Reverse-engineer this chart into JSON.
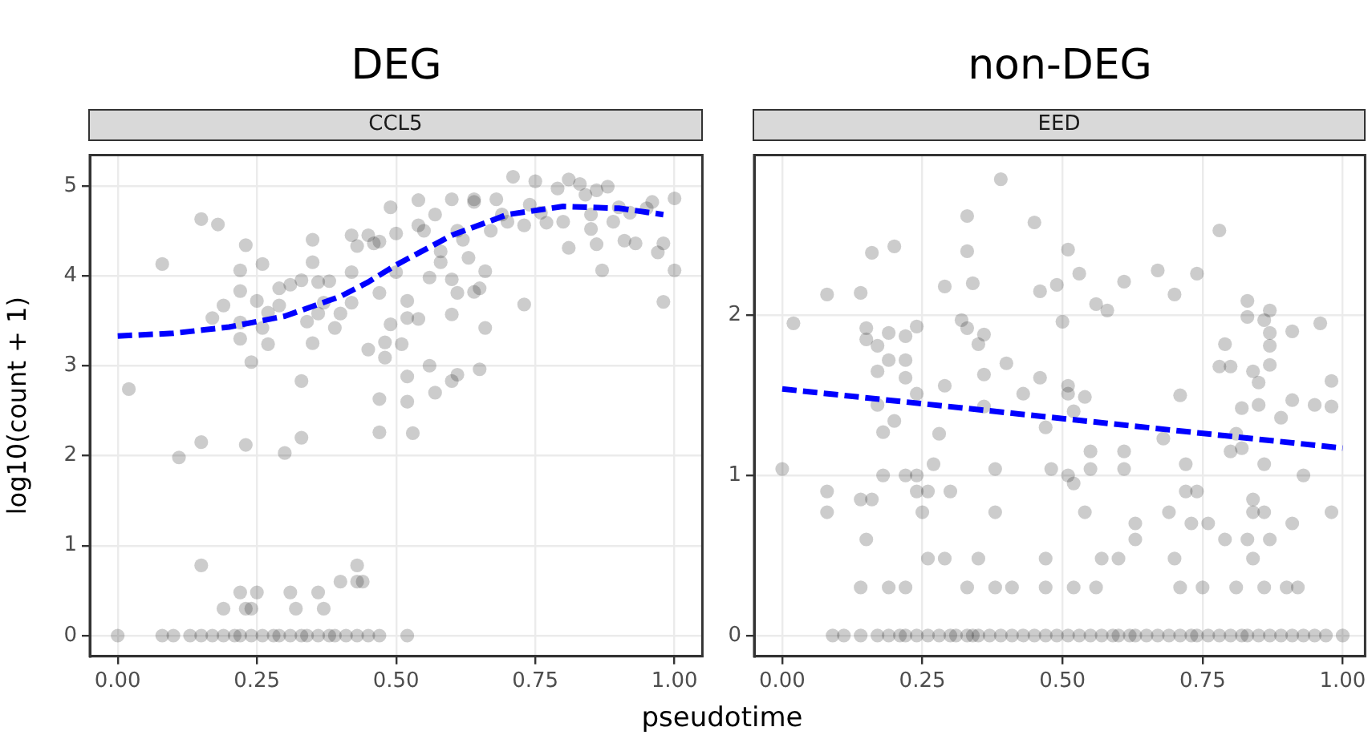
{
  "chart_data": [
    {
      "type": "scatter",
      "title": "DEG",
      "subtitle": "CCL5",
      "xlabel": "pseudotime",
      "ylabel": "log10(count + 1)",
      "xlim": [
        -0.05,
        1.05
      ],
      "ylim": [
        -0.23,
        5.34
      ],
      "xticks": [
        {
          "value": 0,
          "label": "0.00"
        },
        {
          "value": 0.25,
          "label": "0.25"
        },
        {
          "value": 0.5,
          "label": "0.50"
        },
        {
          "value": 0.75,
          "label": "0.75"
        },
        {
          "value": 1,
          "label": "1.00"
        }
      ],
      "yticks": [
        0,
        1,
        2,
        3,
        4,
        5
      ],
      "grid": true,
      "legend": false,
      "series": [
        {
          "type": "scatter",
          "color": "#000000",
          "marker": "circle",
          "x": [
            0,
            0.02,
            0.08,
            0.11,
            0.15,
            0.18,
            0.15,
            0.15,
            0.17,
            0.19,
            0.22,
            0.22,
            0.22,
            0.22,
            0.23,
            0.23,
            0.24,
            0.25,
            0.26,
            0.26,
            0.27,
            0.27,
            0.29,
            0.29,
            0.3,
            0.31,
            0.33,
            0.33,
            0.33,
            0.34,
            0.35,
            0.35,
            0.35,
            0.36,
            0.36,
            0.37,
            0.38,
            0.39,
            0.4,
            0.42,
            0.42,
            0.42,
            0.43,
            0.45,
            0.46,
            0.47,
            0.47,
            0.47,
            0.48,
            0.48,
            0.49,
            0.49,
            0.5,
            0.5,
            0.51,
            0.52,
            0.52,
            0.52,
            0.52,
            0.53,
            0.54,
            0.54,
            0.54,
            0.56,
            0.56,
            0.57,
            0.57,
            0.58,
            0.6,
            0.6,
            0.6,
            0.61,
            0.61,
            0.6,
            0.61,
            0.64,
            0.64,
            0.64,
            0.65,
            0.65,
            0.66,
            0.66,
            0.67,
            0.68,
            0.69,
            0.71,
            0.73,
            0.74,
            0.75,
            0.73,
            0.77,
            0.79,
            0.81,
            0.81,
            0.83,
            0.85,
            0.85,
            0.86,
            0.87,
            0.88,
            0.9,
            0.91,
            0.93,
            0.96,
            0.97,
            0.98,
            0.98,
            1,
            1,
            0.45,
            0.47,
            0.55,
            0.62,
            0.7,
            0.76,
            0.8,
            0.84,
            0.86,
            0.89,
            0.92,
            0.95,
            0.63,
            0.58,
            0.22,
            0.23,
            0.25,
            0.24,
            0.19,
            0.31,
            0.32,
            0.36,
            0.37,
            0.4,
            0.43,
            0.43,
            0.44,
            0.08,
            0.1,
            0.13,
            0.15,
            0.17,
            0.19,
            0.21,
            0.22,
            0.24,
            0.26,
            0.28,
            0.29,
            0.31,
            0.33,
            0.34,
            0.36,
            0.38,
            0.39,
            0.41,
            0.43,
            0.45,
            0.47,
            0.52
          ],
          "values": [
            0,
            2.74,
            4.13,
            1.98,
            4.63,
            4.57,
            0.78,
            2.15,
            3.53,
            3.67,
            3.48,
            3.3,
            3.83,
            4.06,
            4.34,
            2.12,
            3.04,
            3.72,
            4.13,
            3.42,
            3.24,
            3.59,
            3.86,
            3.67,
            2.03,
            3.9,
            3.95,
            2.83,
            2.2,
            3.49,
            3.25,
            4.4,
            4.15,
            3.93,
            3.58,
            3.7,
            3.94,
            3.42,
            3.58,
            4.04,
            3.7,
            4.45,
            4.33,
            3.18,
            4.36,
            2.63,
            2.26,
            3.81,
            3.26,
            3.09,
            4.76,
            3.46,
            4.47,
            4.04,
            3.24,
            3.72,
            2.88,
            2.6,
            3.53,
            2.25,
            3.52,
            4.84,
            4.56,
            3.98,
            3,
            2.7,
            4.68,
            4.27,
            4.85,
            2.83,
            3.57,
            2.9,
            3.81,
            3.96,
            4.5,
            4.85,
            4.82,
            3.82,
            2.96,
            3.86,
            3.42,
            4.05,
            4.5,
            4.85,
            4.68,
            5.1,
            3.68,
            4.79,
            5.05,
            4.56,
            4.59,
            4.97,
            5.07,
            4.31,
            5.02,
            4.68,
            4.52,
            4.35,
            4.06,
            4.99,
            4.76,
            4.39,
            4.36,
            4.82,
            4.26,
            3.71,
            4.36,
            4.86,
            4.06,
            4.45,
            4.38,
            4.5,
            4.4,
            4.6,
            4.7,
            4.6,
            4.9,
            4.95,
            4.6,
            4.7,
            4.75,
            4.2,
            4.15,
            0.48,
            0.3,
            0.48,
            0.3,
            0.3,
            0.48,
            0.3,
            0.48,
            0.3,
            0.6,
            0.6,
            0.78,
            0.6,
            0,
            0,
            0,
            0,
            0,
            0,
            0,
            0,
            0,
            0,
            0,
            0,
            0,
            0,
            0,
            0,
            0,
            0,
            0,
            0,
            0,
            0,
            0
          ]
        },
        {
          "type": "line",
          "color": "#0000ff",
          "line_style": "dashed",
          "marker": "none",
          "x": [
            0,
            0.1,
            0.2,
            0.3,
            0.4,
            0.45,
            0.5,
            0.6,
            0.7,
            0.8,
            0.9,
            0.98
          ],
          "values": [
            3.33,
            3.36,
            3.43,
            3.55,
            3.77,
            3.93,
            4.12,
            4.45,
            4.68,
            4.77,
            4.75,
            4.68
          ]
        }
      ]
    },
    {
      "type": "scatter",
      "title": "non-DEG",
      "subtitle": "EED",
      "xlim": [
        -0.05,
        1.04
      ],
      "ylim": [
        -0.13,
        3
      ],
      "xticks": [
        {
          "value": 0,
          "label": "0.00"
        },
        {
          "value": 0.25,
          "label": "0.25"
        },
        {
          "value": 0.5,
          "label": "0.50"
        },
        {
          "value": 0.75,
          "label": "0.75"
        },
        {
          "value": 1,
          "label": "1.00"
        }
      ],
      "yticks": [
        0,
        1,
        2
      ],
      "grid": true,
      "legend": false,
      "series": [
        {
          "type": "scatter",
          "color": "#000000",
          "marker": "circle",
          "x": [
            0,
            0.02,
            0.08,
            0.08,
            0.08,
            0.14,
            0.16,
            0.15,
            0.15,
            0.14,
            0.16,
            0.15,
            0.14,
            0.17,
            0.17,
            0.17,
            0.18,
            0.18,
            0.2,
            0.19,
            0.19,
            0.2,
            0.19,
            0.22,
            0.22,
            0.22,
            0.22,
            0.22,
            0.24,
            0.24,
            0.24,
            0.24,
            0.25,
            0.26,
            0.26,
            0.27,
            0.28,
            0.29,
            0.29,
            0.3,
            0.29,
            0.32,
            0.33,
            0.33,
            0.33,
            0.34,
            0.33,
            0.35,
            0.36,
            0.36,
            0.36,
            0.35,
            0.38,
            0.38,
            0.38,
            0.39,
            0.4,
            0.41,
            0.43,
            0.45,
            0.46,
            0.46,
            0.47,
            0.47,
            0.48,
            0.47,
            0.49,
            0.5,
            0.51,
            0.51,
            0.51,
            0.52,
            0.51,
            0.52,
            0.52,
            0.53,
            0.54,
            0.54,
            0.55,
            0.55,
            0.56,
            0.58,
            0.57,
            0.56,
            0.6,
            0.61,
            0.61,
            0.61,
            0.63,
            0.63,
            0.67,
            0.68,
            0.7,
            0.71,
            0.69,
            0.7,
            0.71,
            0.72,
            0.72,
            0.74,
            0.74,
            0.73,
            0.75,
            0.76,
            0.78,
            0.79,
            0.78,
            0.8,
            0.79,
            0.8,
            0.81,
            0.81,
            0.82,
            0.82,
            0.83,
            0.83,
            0.84,
            0.84,
            0.84,
            0.83,
            0.84,
            0.85,
            0.85,
            0.86,
            0.86,
            0.87,
            0.87,
            0.87,
            0.87,
            0.86,
            0.86,
            0.87,
            0.89,
            0.9,
            0.91,
            0.91,
            0.91,
            0.92,
            0.93,
            0.95,
            0.96,
            0.98,
            0.98,
            0.98,
            0.09,
            0.11,
            0.14,
            0.17,
            0.19,
            0.21,
            0.22,
            0.24,
            0.26,
            0.28,
            0.3,
            0.31,
            0.33,
            0.34,
            0.35,
            0.37,
            0.39,
            0.41,
            0.43,
            0.45,
            0.47,
            0.49,
            0.51,
            0.53,
            0.55,
            0.57,
            0.59,
            0.6,
            0.62,
            0.63,
            0.65,
            0.67,
            0.69,
            0.71,
            0.73,
            0.74,
            0.76,
            0.78,
            0.8,
            0.82,
            0.83,
            0.85,
            0.87,
            0.89,
            0.91,
            0.93,
            0.95,
            0.97,
            1
          ],
          "values": [
            1.04,
            1.95,
            2.13,
            0.9,
            0.77,
            2.14,
            2.39,
            1.92,
            1.85,
            0.85,
            0.85,
            0.6,
            0.3,
            1.81,
            1.65,
            1.44,
            1,
            1.27,
            2.43,
            1.89,
            1.72,
            1.34,
            0.3,
            0.3,
            1,
            1.61,
            1.87,
            1.72,
            1.93,
            1.51,
            1,
            0.9,
            0.77,
            0.9,
            0.48,
            1.07,
            1.26,
            1.56,
            2.18,
            0.9,
            0.48,
            1.97,
            2.4,
            2.62,
            1.92,
            2.2,
            0.3,
            1.82,
            1.88,
            1.63,
            1.43,
            0.48,
            1.04,
            0.77,
            0.3,
            2.85,
            1.7,
            0.3,
            1.51,
            2.58,
            2.15,
            1.61,
            1.3,
            0.48,
            1.04,
            0.3,
            2.19,
            1.96,
            2.41,
            1.51,
            1.56,
            1.4,
            1,
            0.95,
            0.3,
            2.26,
            1.49,
            0.77,
            1.15,
            1.04,
            2.07,
            2.03,
            0.48,
            0.3,
            0.48,
            2.21,
            1.15,
            1.04,
            0.7,
            0.6,
            2.28,
            1.23,
            2.13,
            1.5,
            0.77,
            0.48,
            0.3,
            1.07,
            0.9,
            0.9,
            2.26,
            0.7,
            0.3,
            0.7,
            2.53,
            1.82,
            1.68,
            1.68,
            0.6,
            1.15,
            1.26,
            0.3,
            1.42,
            1.17,
            2.09,
            1.99,
            1.65,
            0.85,
            0.77,
            0.6,
            0.48,
            1.44,
            1.58,
            0.3,
            1.97,
            1.81,
            2.03,
            1.89,
            1.69,
            1.07,
            0.77,
            0.6,
            1.36,
            0.3,
            1.9,
            1.47,
            0.7,
            0.3,
            1,
            1.44,
            1.95,
            0.77,
            1.43,
            1.59,
            0,
            0,
            0,
            0,
            0,
            0,
            0,
            0,
            0,
            0,
            0,
            0,
            0,
            0,
            0,
            0,
            0,
            0,
            0,
            0,
            0,
            0,
            0,
            0,
            0,
            0,
            0,
            0,
            0,
            0,
            0,
            0,
            0,
            0,
            0,
            0,
            0,
            0,
            0,
            0,
            0,
            0,
            0,
            0,
            0,
            0,
            0,
            0,
            0
          ]
        },
        {
          "type": "line",
          "color": "#0000ff",
          "line_style": "dashed",
          "marker": "none",
          "x": [
            0,
            1
          ],
          "values": [
            1.54,
            1.17
          ]
        }
      ]
    }
  ]
}
